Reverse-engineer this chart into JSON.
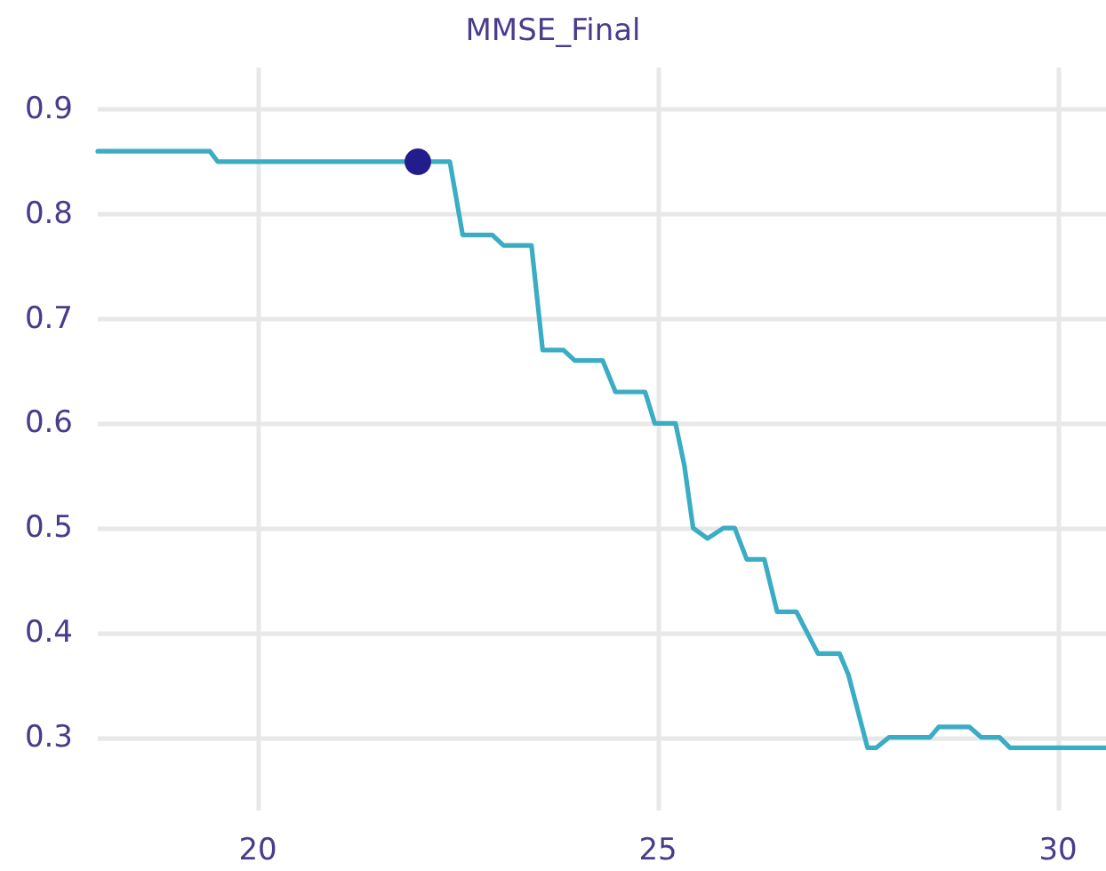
{
  "chart_data": {
    "type": "line",
    "title": "MMSE_Final",
    "xlim": [
      18,
      30.6
    ],
    "xticks": [
      20,
      25,
      30
    ],
    "ylim": [
      0.23,
      0.94
    ],
    "yticks": [
      0.3,
      0.4,
      0.5,
      0.6,
      0.7,
      0.8,
      0.9
    ],
    "grid": true,
    "line_style": "solid",
    "series": [
      {
        "color": "#3aacc4",
        "marker": "none",
        "x": [
          18,
          19.4,
          19.5,
          22.4,
          22.56,
          22.93,
          23.07,
          23.42,
          23.56,
          23.82,
          23.96,
          24.31,
          24.47,
          24.84,
          24.96,
          25.22,
          25.33,
          25.44,
          25.62,
          25.82,
          25.96,
          26.11,
          26.33,
          26.49,
          26.73,
          27.0,
          27.27,
          27.38,
          27.62,
          27.73,
          27.89,
          28.4,
          28.51,
          28.89,
          29.04,
          29.27,
          29.4,
          30.6
        ],
        "values": [
          0.86,
          0.86,
          0.85,
          0.85,
          0.78,
          0.78,
          0.77,
          0.77,
          0.67,
          0.67,
          0.66,
          0.66,
          0.63,
          0.63,
          0.6,
          0.6,
          0.56,
          0.5,
          0.49,
          0.5,
          0.5,
          0.47,
          0.47,
          0.42,
          0.42,
          0.38,
          0.38,
          0.36,
          0.29,
          0.29,
          0.3,
          0.3,
          0.31,
          0.31,
          0.3,
          0.3,
          0.29,
          0.29
        ]
      },
      {
        "type": "scatter",
        "color": "#221c8c",
        "marker": "circle",
        "x": [
          22
        ],
        "values": [
          0.85
        ]
      }
    ]
  }
}
